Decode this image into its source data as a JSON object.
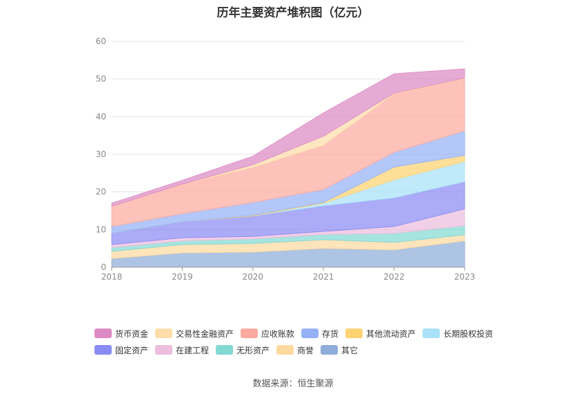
{
  "chart_data": {
    "type": "area",
    "stacked": true,
    "title": "历年主要资产堆积图（亿元）",
    "categories": [
      "2018",
      "2019",
      "2020",
      "2021",
      "2022",
      "2023"
    ],
    "ylim": [
      0,
      60
    ],
    "yticks": [
      0,
      10,
      20,
      30,
      40,
      50,
      60
    ],
    "grid": true,
    "legend_position": "bottom",
    "series": [
      {
        "name": "其它",
        "color": "#8fadd9",
        "values": [
          2.3,
          3.8,
          4.0,
          5.0,
          4.6,
          7.0
        ]
      },
      {
        "name": "商誉",
        "color": "#fdd9a0",
        "values": [
          1.9,
          2.2,
          2.3,
          2.3,
          2.0,
          1.6
        ]
      },
      {
        "name": "无形资产",
        "color": "#83d9d4",
        "values": [
          1.0,
          1.0,
          1.2,
          1.4,
          2.4,
          2.4
        ]
      },
      {
        "name": "在建工程",
        "color": "#ecbddd",
        "values": [
          0.8,
          0.8,
          0.7,
          0.8,
          1.8,
          4.5
        ]
      },
      {
        "name": "固定资产",
        "color": "#8b8bf4",
        "values": [
          3.0,
          4.2,
          5.4,
          6.8,
          7.6,
          7.2
        ]
      },
      {
        "name": "长期股权投资",
        "color": "#a8e1f8",
        "values": [
          0,
          0,
          0,
          0.7,
          4.8,
          5.4
        ]
      },
      {
        "name": "其他流动资产",
        "color": "#fed270",
        "values": [
          0,
          0,
          0.2,
          0.2,
          3.4,
          1.6
        ]
      },
      {
        "name": "存货",
        "color": "#96b1f6",
        "values": [
          1.8,
          2.2,
          3.4,
          3.4,
          3.9,
          6.5
        ]
      },
      {
        "name": "应收账款",
        "color": "#fcaaa0",
        "values": [
          5.4,
          7.9,
          9.3,
          11.8,
          15.5,
          13.9
        ]
      },
      {
        "name": "交易性金融资产",
        "color": "#feddaa",
        "values": [
          0,
          0,
          0.7,
          2.4,
          0.2,
          0.1
        ]
      },
      {
        "name": "货币资金",
        "color": "#dd8ac4",
        "values": [
          0.8,
          1.0,
          2.3,
          6.2,
          5.2,
          2.5
        ]
      }
    ]
  },
  "legend_rows": [
    [
      "货币资金",
      "交易性金融资产",
      "应收账款",
      "存货",
      "其他流动资产",
      "长期股权投资"
    ],
    [
      "固定资产",
      "在建工程",
      "无形资产",
      "商誉",
      "其它"
    ]
  ],
  "source": "数据来源：恒生聚源"
}
